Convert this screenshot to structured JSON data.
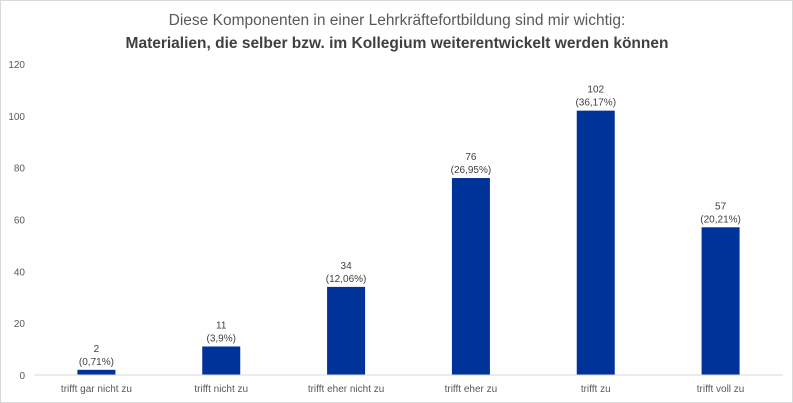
{
  "chart_data": {
    "type": "bar",
    "title": "Diese Komponenten in einer Lehrkräftefortbildung sind mir wichtig:",
    "subtitle": "Materialien, die selber bzw. im Kollegium weiterentwickelt werden können",
    "xlabel": "",
    "ylabel": "",
    "ylim": [
      0,
      120
    ],
    "yticks": [
      "0",
      "20",
      "40",
      "60",
      "80",
      "100",
      "120"
    ],
    "grid": false,
    "bar_color": "#003399",
    "categories": [
      "trifft gar nicht zu",
      "trifft nicht zu",
      "trifft eher nicht zu",
      "trifft eher zu",
      "trifft zu",
      "trifft voll zu"
    ],
    "values": [
      2,
      11,
      34,
      76,
      102,
      57
    ],
    "value_labels": [
      "2",
      "11",
      "34",
      "76",
      "102",
      "57"
    ],
    "percent_labels": [
      "(0,71%)",
      "(3,9%)",
      "(12,06%)",
      "(26,95%)",
      "(36,17%)",
      "(20,21%)"
    ]
  }
}
